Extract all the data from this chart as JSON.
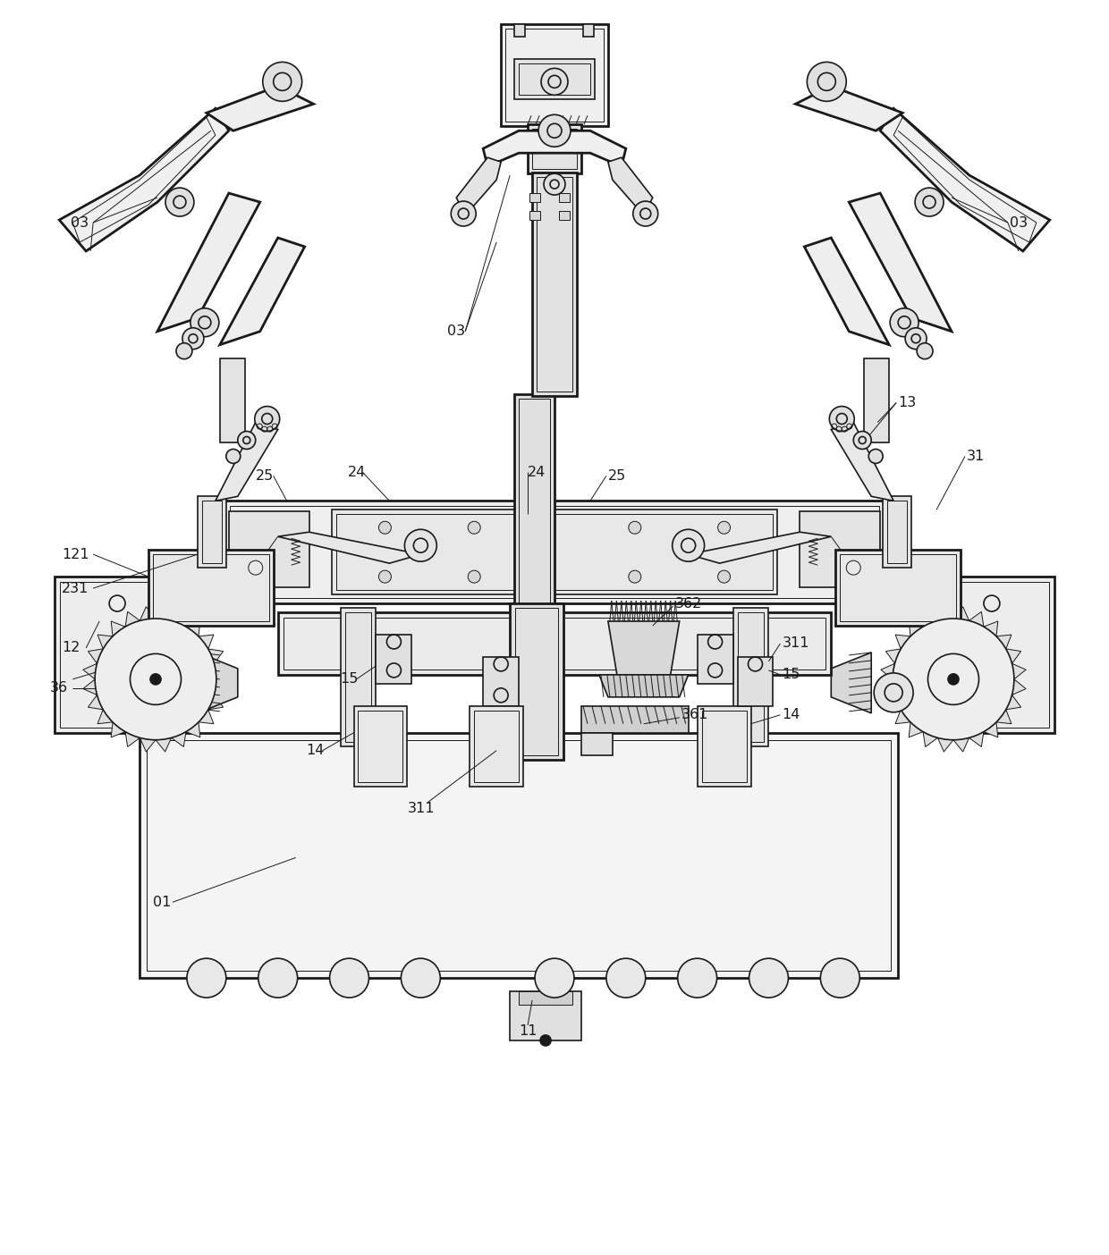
{
  "background_color": "#ffffff",
  "line_color": "#1a1a1a",
  "labels": {
    "03_tl": "03",
    "03_tc": "03",
    "03_tr": "03",
    "13": "13",
    "25_l": "25",
    "24_l": "24",
    "24_r": "24",
    "25_r": "25",
    "121": "121",
    "231": "231",
    "12": "12",
    "36": "36",
    "15_c": "15",
    "362": "362",
    "14_c": "14",
    "311_c": "311",
    "361": "361",
    "311_r": "311",
    "15_r": "15",
    "14_r": "14",
    "31": "31",
    "01": "01",
    "11": "11"
  }
}
